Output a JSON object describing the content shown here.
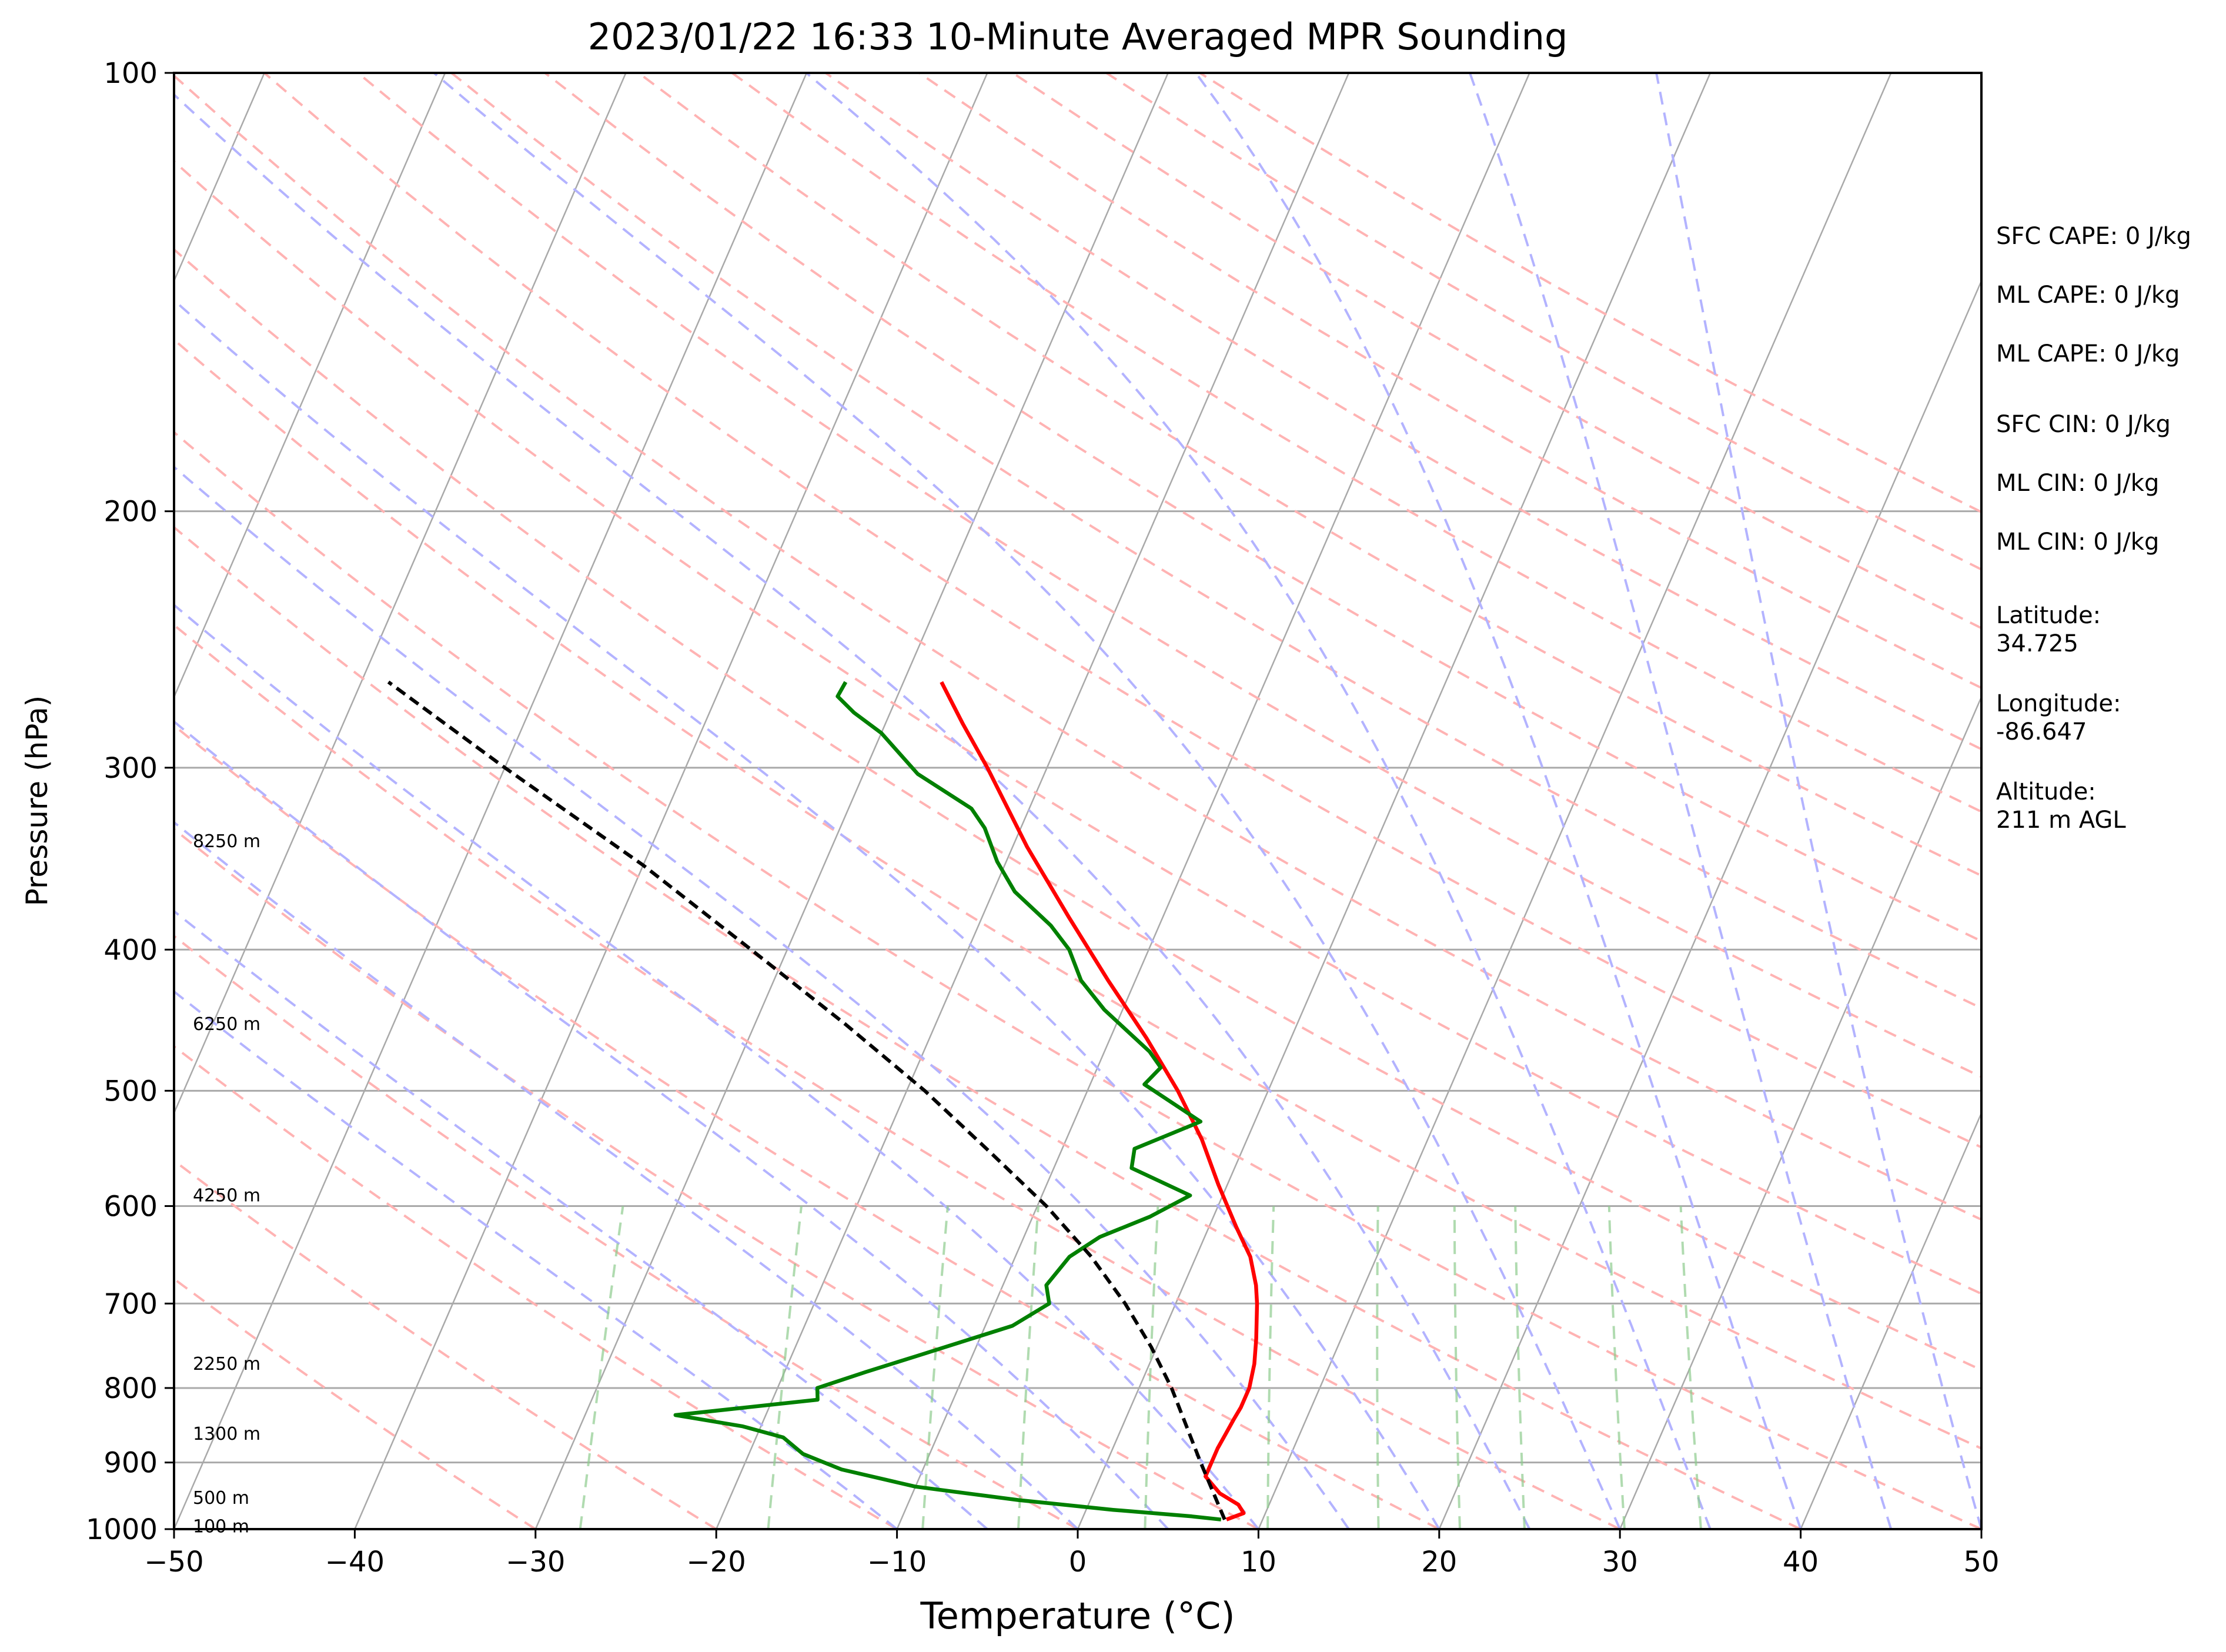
{
  "chart_data": {
    "type": "line",
    "title": "2023/01/22 16:33 10-Minute Averaged MPR Sounding",
    "xlabel": "Temperature (°C)",
    "ylabel": "Pressure (hPa)",
    "xlim": [
      -50,
      50
    ],
    "ylim": [
      1000,
      100
    ],
    "y_scale": "log",
    "x_ticks": [
      -50,
      -40,
      -30,
      -20,
      -10,
      0,
      10,
      20,
      30,
      40,
      50
    ],
    "x_tick_labels": [
      "−50",
      "−40",
      "−30",
      "−20",
      "−10",
      "0",
      "10",
      "20",
      "30",
      "40",
      "50"
    ],
    "y_ticks": [
      1000,
      900,
      800,
      700,
      600,
      500,
      400,
      300,
      200,
      100
    ],
    "y_tick_labels": [
      "1000",
      "900",
      "800",
      "700",
      "600",
      "500",
      "400",
      "300",
      "200",
      "100"
    ],
    "grid": true,
    "series": [
      {
        "id": "temperature",
        "color": "#ff0000",
        "style": "solid",
        "points": [
          {
            "p": 985,
            "t": 8.0
          },
          {
            "p": 975,
            "t": 8.8
          },
          {
            "p": 962,
            "t": 8.3
          },
          {
            "p": 945,
            "t": 7.0
          },
          {
            "p": 920,
            "t": 5.8
          },
          {
            "p": 900,
            "t": 5.8
          },
          {
            "p": 880,
            "t": 5.8
          },
          {
            "p": 860,
            "t": 5.9
          },
          {
            "p": 840,
            "t": 6.0
          },
          {
            "p": 825,
            "t": 6.1
          },
          {
            "p": 800,
            "t": 6.1
          },
          {
            "p": 770,
            "t": 5.8
          },
          {
            "p": 740,
            "t": 5.3
          },
          {
            "p": 700,
            "t": 4.5
          },
          {
            "p": 680,
            "t": 4.0
          },
          {
            "p": 650,
            "t": 3.0
          },
          {
            "p": 620,
            "t": 1.5
          },
          {
            "p": 580,
            "t": -0.5
          },
          {
            "p": 540,
            "t": -2.5
          },
          {
            "p": 500,
            "t": -5.0
          },
          {
            "p": 460,
            "t": -8.0
          },
          {
            "p": 420,
            "t": -11.5
          },
          {
            "p": 380,
            "t": -15.2
          },
          {
            "p": 340,
            "t": -19.2
          },
          {
            "p": 300,
            "t": -23.3
          },
          {
            "p": 280,
            "t": -25.7
          },
          {
            "p": 262,
            "t": -27.9
          }
        ]
      },
      {
        "id": "dewpoint",
        "color": "#008000",
        "style": "solid",
        "points": [
          {
            "p": 985,
            "t": 7.7
          },
          {
            "p": 980,
            "t": 6.0
          },
          {
            "p": 970,
            "t": 1.5
          },
          {
            "p": 955,
            "t": -4.0
          },
          {
            "p": 935,
            "t": -10.0
          },
          {
            "p": 910,
            "t": -14.5
          },
          {
            "p": 888,
            "t": -17.0
          },
          {
            "p": 865,
            "t": -18.5
          },
          {
            "p": 850,
            "t": -21.0
          },
          {
            "p": 835,
            "t": -25.0
          },
          {
            "p": 815,
            "t": -17.5
          },
          {
            "p": 800,
            "t": -17.8
          },
          {
            "p": 780,
            "t": -15.5
          },
          {
            "p": 760,
            "t": -13.0
          },
          {
            "p": 725,
            "t": -8.5
          },
          {
            "p": 700,
            "t": -7.0
          },
          {
            "p": 680,
            "t": -7.6
          },
          {
            "p": 650,
            "t": -7.0
          },
          {
            "p": 630,
            "t": -5.8
          },
          {
            "p": 610,
            "t": -3.5
          },
          {
            "p": 590,
            "t": -1.8
          },
          {
            "p": 565,
            "t": -5.7
          },
          {
            "p": 548,
            "t": -6.0
          },
          {
            "p": 525,
            "t": -3.0
          },
          {
            "p": 495,
            "t": -7.0
          },
          {
            "p": 482,
            "t": -6.5
          },
          {
            "p": 470,
            "t": -7.5
          },
          {
            "p": 440,
            "t": -11.0
          },
          {
            "p": 420,
            "t": -13.0
          },
          {
            "p": 400,
            "t": -14.4
          },
          {
            "p": 385,
            "t": -16.0
          },
          {
            "p": 365,
            "t": -18.8
          },
          {
            "p": 348,
            "t": -20.5
          },
          {
            "p": 330,
            "t": -22.0
          },
          {
            "p": 320,
            "t": -23.2
          },
          {
            "p": 303,
            "t": -27.0
          },
          {
            "p": 284,
            "t": -30.0
          },
          {
            "p": 275,
            "t": -32.0
          },
          {
            "p": 268,
            "t": -33.3
          },
          {
            "p": 262,
            "t": -33.2
          }
        ]
      },
      {
        "id": "parcel",
        "color": "#000000",
        "style": "dashed",
        "points": [
          {
            "p": 985,
            "t": 7.9
          },
          {
            "p": 900,
            "t": 5.2
          },
          {
            "p": 800,
            "t": 1.8
          },
          {
            "p": 750,
            "t": -0.3
          },
          {
            "p": 700,
            "t": -2.8
          },
          {
            "p": 650,
            "t": -5.8
          },
          {
            "p": 600,
            "t": -9.5
          },
          {
            "p": 550,
            "t": -14.0
          },
          {
            "p": 500,
            "t": -19.0
          },
          {
            "p": 450,
            "t": -25.0
          },
          {
            "p": 400,
            "t": -32.0
          },
          {
            "p": 350,
            "t": -40.0
          },
          {
            "p": 300,
            "t": -50.0
          },
          {
            "p": 262,
            "t": -58.5
          }
        ]
      }
    ],
    "background": {
      "isotherm_color": "#a9a9a9",
      "dry_adiabat_color": "#ffb3b3",
      "moist_adiabat_color": "#b3b3ff",
      "mixing_ratio_color": "#8fcc8f",
      "skew": 35
    },
    "height_labels": [
      {
        "text": "100 m",
        "p": 996
      },
      {
        "text": "500 m",
        "p": 952
      },
      {
        "text": "1300 m",
        "p": 860
      },
      {
        "text": "2250 m",
        "p": 770
      },
      {
        "text": "4250 m",
        "p": 590
      },
      {
        "text": "6250 m",
        "p": 450
      },
      {
        "text": "8250 m",
        "p": 337
      }
    ]
  },
  "annotations": [
    "SFC CAPE: 0 J/kg",
    "ML CAPE: 0 J/kg",
    "ML CAPE: 0 J/kg",
    "SFC CIN: 0 J/kg",
    "ML CIN: 0 J/kg",
    "ML CIN: 0 J/kg"
  ],
  "station": {
    "latitude_label": "Latitude:",
    "latitude": "34.725",
    "longitude_label": "Longitude:",
    "longitude": "-86.647",
    "altitude_label": "Altitude:",
    "altitude": "211 m AGL"
  }
}
